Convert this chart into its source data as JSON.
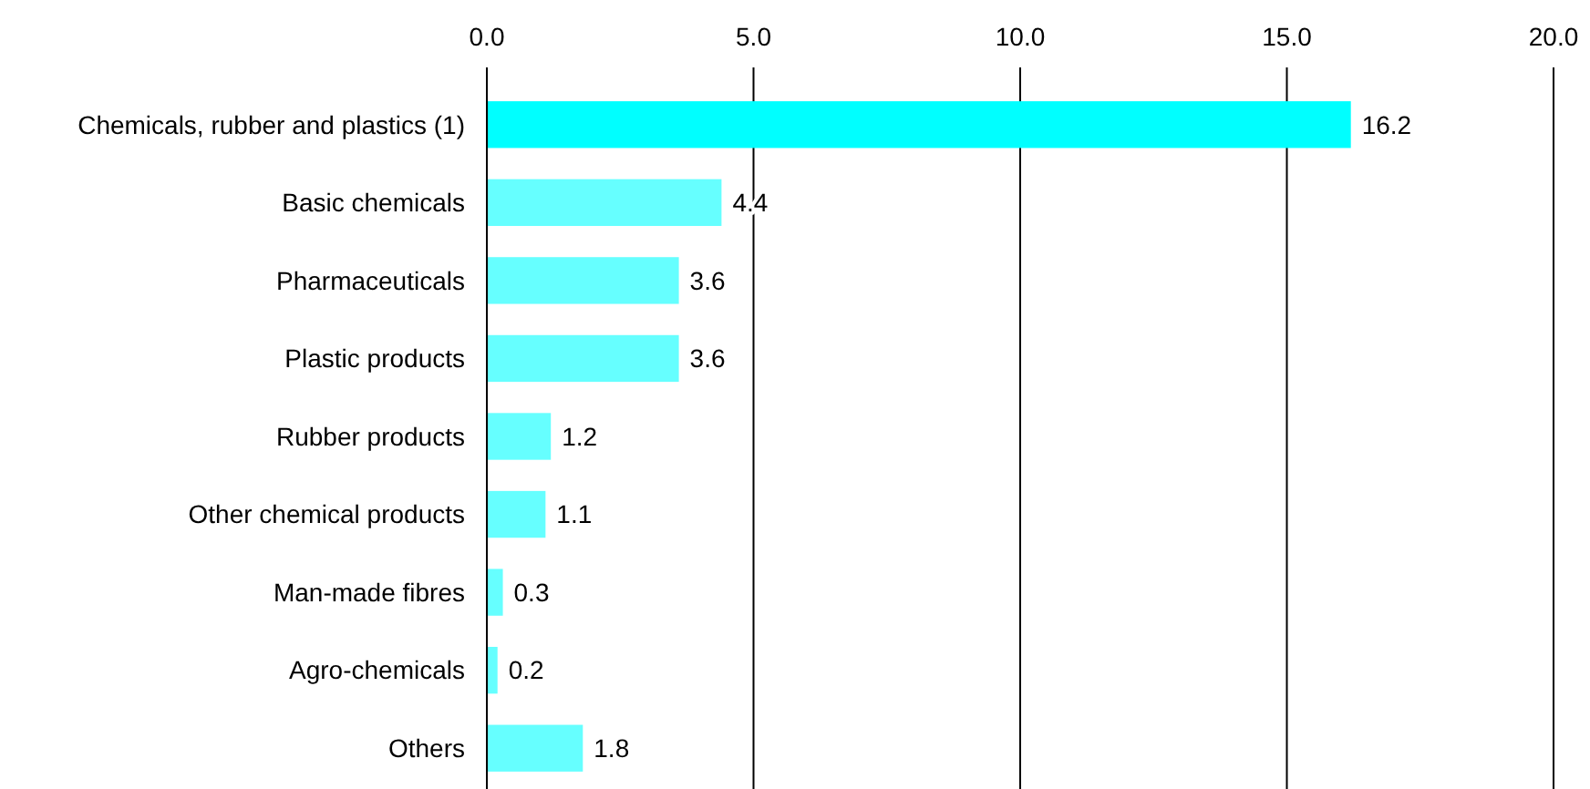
{
  "chart_data": {
    "type": "bar",
    "orientation": "horizontal",
    "categories": [
      "Chemicals, rubber and plastics (1)",
      "Basic chemicals",
      "Pharmaceuticals",
      "Plastic products",
      "Rubber products",
      "Other chemical products",
      "Man-made fibres",
      "Agro-chemicals",
      "Others"
    ],
    "values": [
      16.2,
      4.4,
      3.6,
      3.6,
      1.2,
      1.1,
      0.3,
      0.2,
      1.8
    ],
    "colors": [
      "#00ffff",
      "#66ffff",
      "#66ffff",
      "#66ffff",
      "#66ffff",
      "#66ffff",
      "#66ffff",
      "#66ffff",
      "#66ffff"
    ],
    "xlim": [
      0,
      20
    ],
    "xticks": [
      {
        "value": 0,
        "label": "0.0"
      },
      {
        "value": 5,
        "label": "5.0"
      },
      {
        "value": 10,
        "label": "10.0"
      },
      {
        "value": 15,
        "label": "15.0"
      },
      {
        "value": 20,
        "label": "20.0"
      }
    ],
    "grid": "x",
    "data_labels": true
  }
}
